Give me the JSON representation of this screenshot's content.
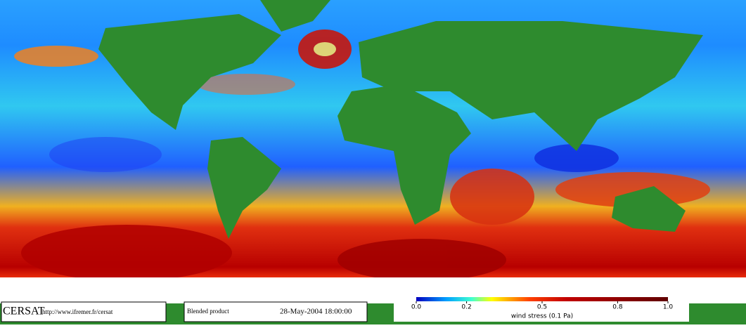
{
  "footer": {
    "logo": "CERSAT",
    "url": "http://www.ifremer.fr/cersat",
    "product": "Blended product",
    "datetime": "28-May-2004 18:00:00"
  },
  "colorbar": {
    "label": "wind stress (0.1 Pa)",
    "lim": [
      0,
      1
    ],
    "ticks": [
      {
        "value": 0,
        "label": "0.0"
      },
      {
        "value": 0.2,
        "label": "0.2"
      },
      {
        "value": 0.5,
        "label": "0.5"
      },
      {
        "value": 0.8,
        "label": "0.8"
      },
      {
        "value": 1,
        "label": "1.0"
      }
    ]
  }
}
